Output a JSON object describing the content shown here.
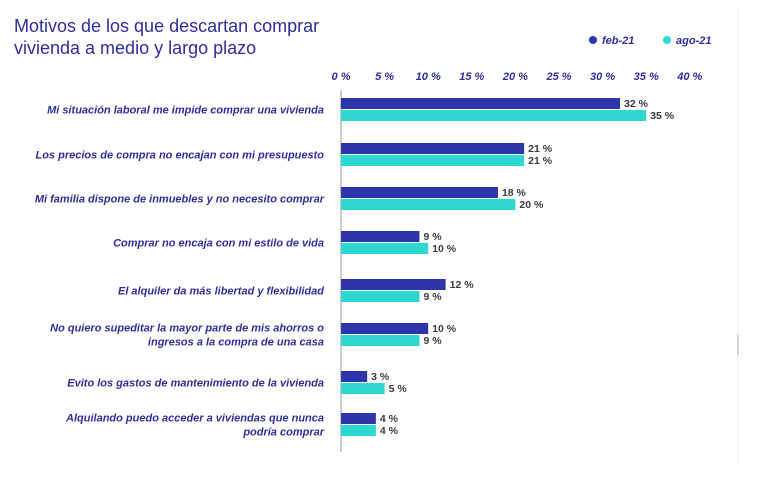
{
  "chart_data": {
    "type": "bar",
    "orientation": "horizontal",
    "title": "Motivos de los que descartan comprar vivienda a medio y largo plazo",
    "title_lines": [
      "Motivos de los que descartan comprar",
      "vivienda a medio y largo plazo"
    ],
    "categories": [
      [
        "Mi situación laboral me impide comprar una vivienda"
      ],
      [
        "Los precios de compra no encajan con mi presupuesto"
      ],
      [
        "Mi familia dispone de inmuebles y no necesito comprar"
      ],
      [
        "Comprar no encaja con mi estilo de vida"
      ],
      [
        "El alquiler da más libertad y flexibilidad"
      ],
      [
        "No quiero supeditar la mayor parte de mis ahorros o",
        "ingresos a la compra de una casa"
      ],
      [
        "Evito los gastos de mantenimiento de la vivienda"
      ],
      [
        "Alquilando puedo acceder a viviendas que nunca",
        "podría comprar"
      ]
    ],
    "series": [
      {
        "name": "feb-21",
        "color": "#2e35a8",
        "values": [
          32,
          21,
          18,
          9,
          12,
          10,
          3,
          4
        ]
      },
      {
        "name": "ago-21",
        "color": "#2ed8d0",
        "values": [
          35,
          21,
          20,
          10,
          9,
          9,
          5,
          4
        ]
      }
    ],
    "value_suffix": " %",
    "xlim": [
      0,
      40
    ],
    "xticks": [
      0,
      5,
      10,
      15,
      20,
      25,
      30,
      35,
      40
    ],
    "xtick_labels": [
      "0 %",
      "5 %",
      "10 %",
      "15 %",
      "20 %",
      "25 %",
      "30 %",
      "35 %",
      "40 %"
    ],
    "legend_position": "top-right",
    "grid": false
  }
}
